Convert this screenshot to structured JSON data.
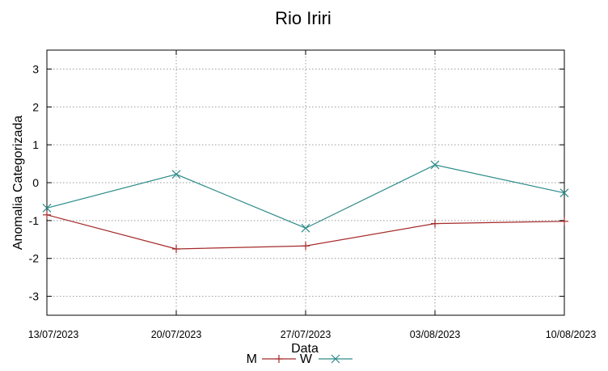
{
  "chart_data": {
    "type": "line",
    "title": "Rio Iriri",
    "xlabel": "Data",
    "ylabel": "Anomalia Categorizada",
    "categories": [
      "13/07/2023",
      "20/07/2023",
      "27/07/2023",
      "03/08/2023",
      "10/08/2023"
    ],
    "ylim": [
      -3.5,
      3.5
    ],
    "yticks": [
      3,
      2,
      1,
      0,
      -1,
      -2,
      -3
    ],
    "grid": true,
    "legend_position": "bottom-center",
    "series": [
      {
        "name": "M",
        "color": "#a52a2a",
        "marker": "plus",
        "values": [
          -0.85,
          -1.75,
          -1.67,
          -1.08,
          -1.02
        ]
      },
      {
        "name": "W",
        "color": "#2e8b8b",
        "marker": "cross",
        "values": [
          -0.67,
          0.22,
          -1.2,
          0.47,
          -0.27
        ]
      }
    ]
  }
}
